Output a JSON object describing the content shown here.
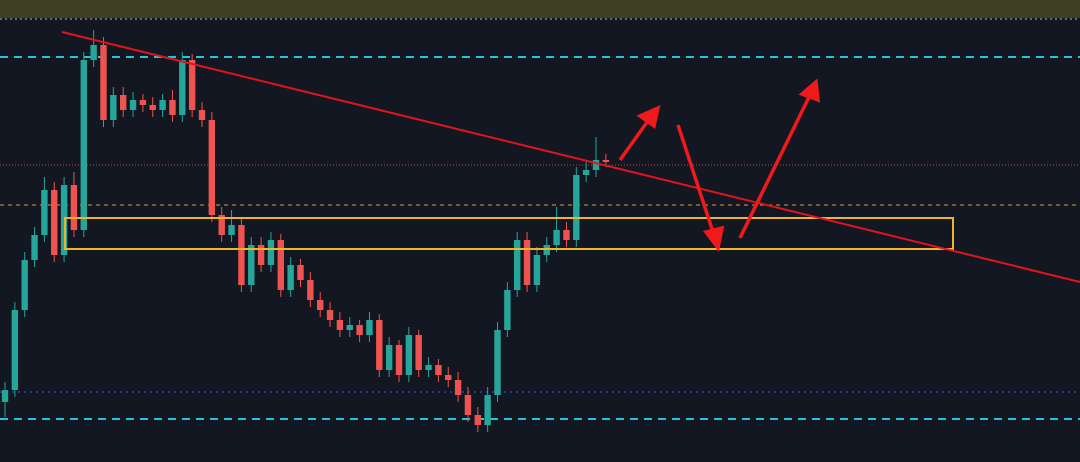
{
  "chart_data": {
    "type": "candlestick",
    "up_color": "#26a69a",
    "down_color": "#ef5350",
    "ylim": [
      0,
      462
    ],
    "open": [
      60,
      72,
      152,
      202,
      227,
      272,
      207,
      277,
      232,
      402,
      417,
      342,
      367,
      352,
      362,
      357,
      352,
      362,
      347,
      402,
      352,
      342,
      247,
      227,
      237,
      177,
      217,
      197,
      222,
      172,
      197,
      182,
      162,
      152,
      142,
      132,
      137,
      127,
      142,
      92,
      117,
      87,
      127,
      92,
      97,
      87,
      82,
      67,
      47,
      37,
      67,
      132,
      172,
      222,
      177,
      207,
      217,
      232,
      222,
      287,
      292,
      302
    ],
    "high": [
      80,
      160,
      210,
      235,
      285,
      280,
      285,
      290,
      410,
      432,
      425,
      375,
      375,
      370,
      368,
      365,
      368,
      372,
      410,
      408,
      360,
      350,
      255,
      252,
      245,
      225,
      225,
      230,
      228,
      205,
      203,
      190,
      170,
      160,
      150,
      145,
      142,
      150,
      148,
      125,
      122,
      135,
      132,
      105,
      103,
      95,
      90,
      75,
      55,
      75,
      140,
      180,
      230,
      230,
      215,
      225,
      255,
      240,
      295,
      300,
      325,
      308
    ],
    "low": [
      45,
      65,
      145,
      195,
      220,
      200,
      200,
      225,
      225,
      395,
      335,
      335,
      345,
      345,
      350,
      345,
      345,
      340,
      340,
      345,
      335,
      240,
      220,
      220,
      170,
      170,
      190,
      190,
      165,
      165,
      175,
      155,
      145,
      135,
      125,
      125,
      120,
      120,
      85,
      85,
      80,
      80,
      85,
      85,
      80,
      75,
      60,
      40,
      30,
      30,
      60,
      125,
      165,
      170,
      170,
      200,
      210,
      215,
      215,
      280,
      285,
      295
    ],
    "close": [
      72,
      152,
      202,
      227,
      272,
      207,
      277,
      232,
      402,
      417,
      342,
      367,
      352,
      362,
      357,
      352,
      362,
      347,
      402,
      352,
      342,
      247,
      227,
      237,
      177,
      217,
      197,
      222,
      172,
      197,
      182,
      162,
      152,
      142,
      132,
      137,
      127,
      142,
      92,
      117,
      87,
      127,
      92,
      97,
      87,
      82,
      67,
      47,
      37,
      67,
      132,
      172,
      222,
      177,
      207,
      217,
      232,
      222,
      287,
      292,
      302,
      300
    ]
  }
}
